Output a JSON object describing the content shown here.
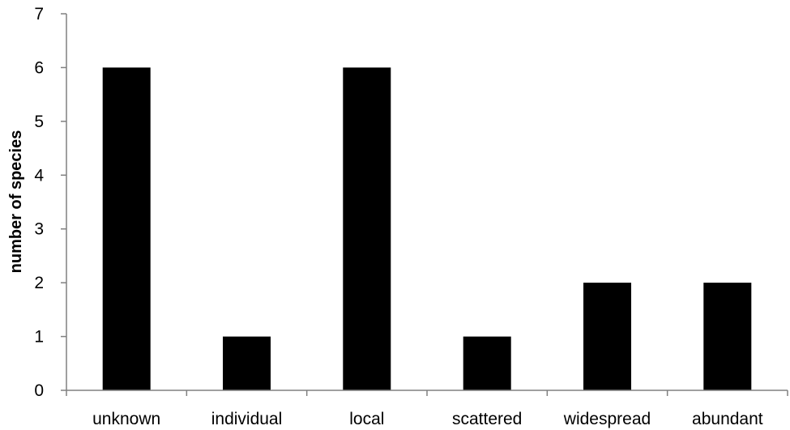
{
  "chart_data": {
    "type": "bar",
    "title": "",
    "xlabel": "",
    "ylabel": "number of species",
    "categories": [
      "unknown",
      "individual",
      "local",
      "scattered",
      "widespread",
      "abundant"
    ],
    "values": [
      6,
      1,
      6,
      1,
      2,
      2
    ],
    "ylim": [
      0,
      7
    ],
    "yticks": [
      0,
      1,
      2,
      3,
      4,
      5,
      6,
      7
    ],
    "grid": false,
    "legend": "none",
    "bar_color": "#000000",
    "axis_color": "#808080"
  }
}
